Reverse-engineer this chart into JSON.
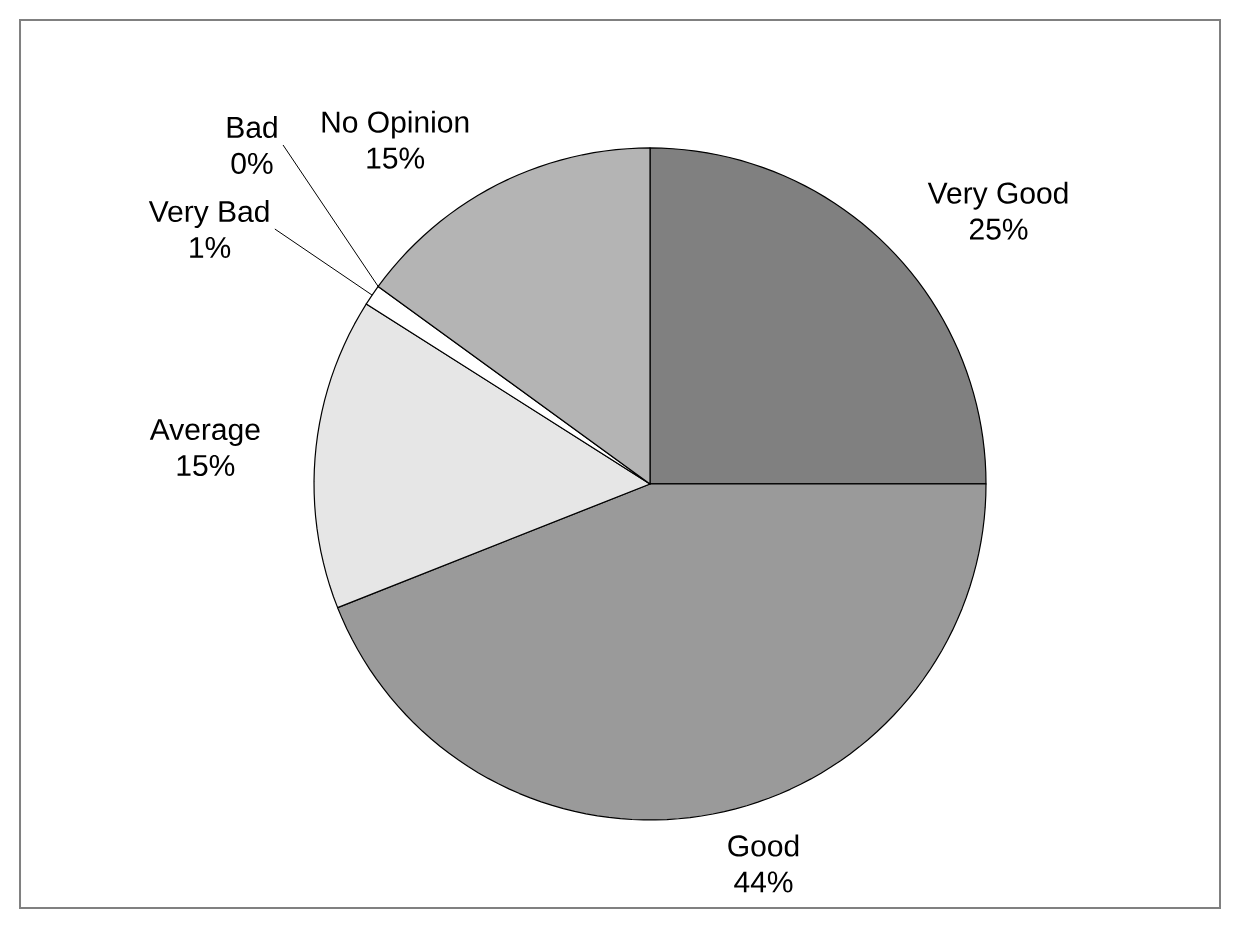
{
  "chart_data": {
    "type": "pie",
    "categories": [
      "Very Good",
      "Good",
      "Average",
      "Very Bad",
      "Bad",
      "No Opinion"
    ],
    "values": [
      25,
      44,
      15,
      1,
      0,
      15
    ],
    "value_labels": [
      "25%",
      "44%",
      "15%",
      "1%",
      "0%",
      "15%"
    ],
    "colors": [
      "#808080",
      "#9a9a9a",
      "#e6e6e6",
      "#ffffff",
      "#d0d0d0",
      "#b4b4b4"
    ]
  }
}
